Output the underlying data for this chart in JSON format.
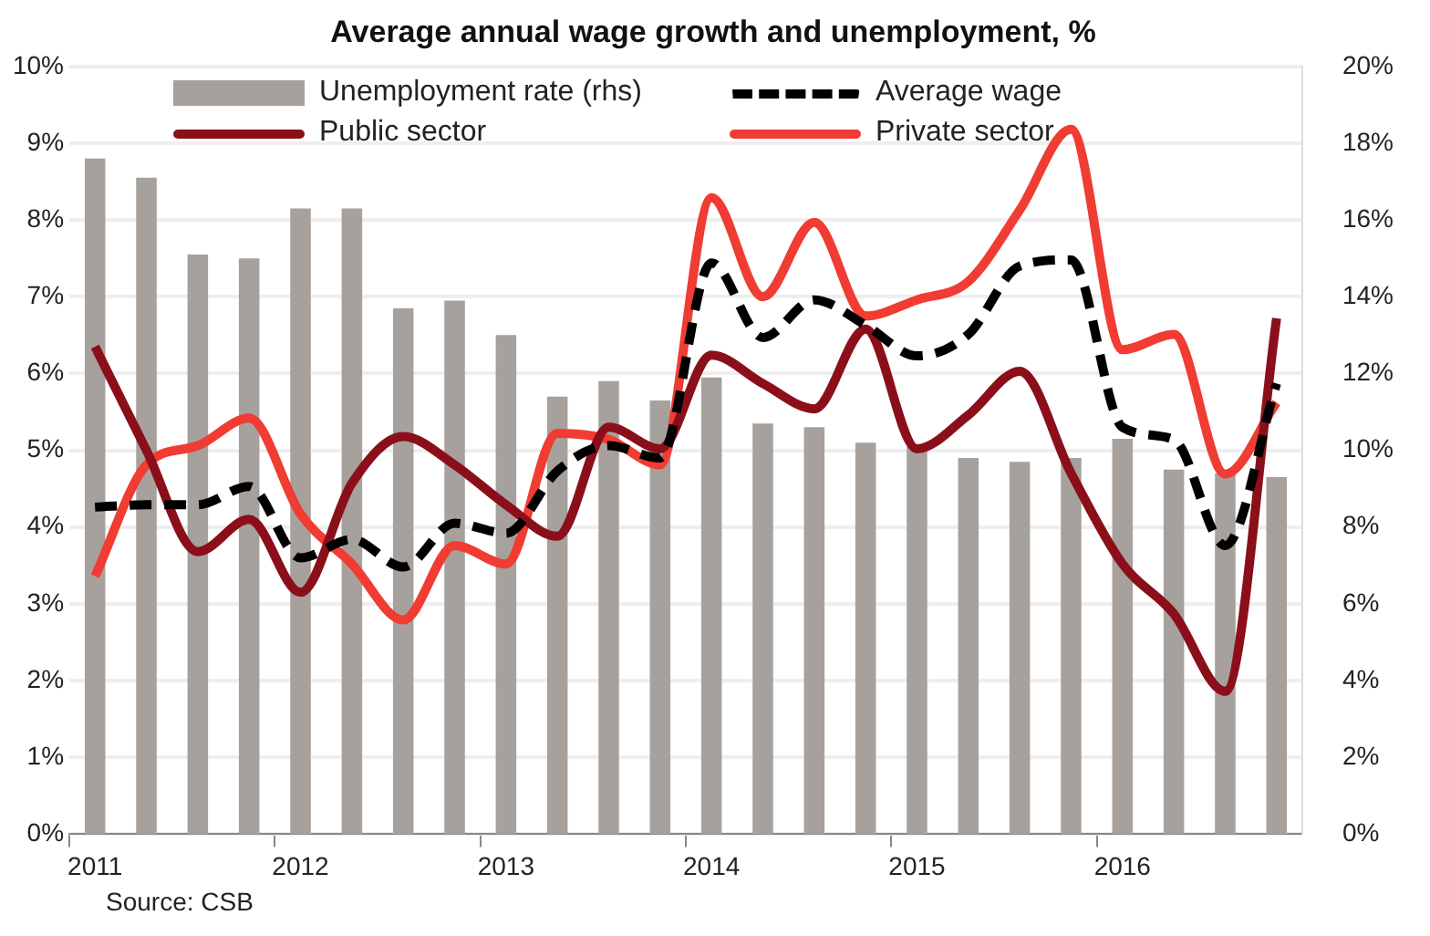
{
  "chart_data": {
    "type": "line",
    "title": "Average annual wage growth and unemployment, %",
    "categories": [
      "2011",
      null,
      null,
      null,
      "2012",
      null,
      null,
      null,
      "2013",
      null,
      null,
      null,
      "2014",
      null,
      null,
      null,
      "2015",
      null,
      null,
      null,
      "2016",
      null,
      null,
      null
    ],
    "series": [
      {
        "name": "Unemployment rate (rhs)",
        "type": "bar",
        "axis": "y2",
        "color": "#a6a19d",
        "values": [
          17.6,
          17.1,
          15.1,
          15.0,
          16.3,
          16.3,
          13.7,
          13.9,
          13.0,
          11.4,
          11.8,
          11.3,
          11.9,
          10.7,
          10.6,
          10.2,
          10.1,
          9.8,
          9.7,
          9.8,
          10.3,
          9.5,
          9.4,
          9.3
        ]
      },
      {
        "name": "Average wage",
        "color": "#000000",
        "line_style": "dashed",
        "values": [
          4.26,
          4.29,
          4.29,
          4.53,
          3.6,
          3.84,
          3.48,
          4.05,
          3.92,
          4.73,
          5.06,
          4.9,
          7.44,
          6.47,
          6.96,
          6.63,
          6.23,
          6.51,
          7.4,
          7.48,
          5.3,
          5.14,
          3.76,
          5.87
        ]
      },
      {
        "name": "Public sector",
        "color": "#8b0f1a",
        "line_style": "solid",
        "values": [
          6.35,
          5.0,
          3.68,
          4.1,
          3.15,
          4.57,
          5.18,
          4.81,
          4.29,
          3.88,
          5.3,
          5.02,
          6.24,
          5.87,
          5.54,
          6.58,
          5.02,
          5.46,
          6.03,
          4.7,
          3.52,
          2.87,
          1.86,
          6.72
        ]
      },
      {
        "name": "Private sector",
        "color": "#f03c32",
        "line_style": "solid",
        "values": [
          3.36,
          4.81,
          5.06,
          5.42,
          4.17,
          3.52,
          2.79,
          3.76,
          3.52,
          5.22,
          5.14,
          4.81,
          8.29,
          7.0,
          7.97,
          6.75,
          6.96,
          7.2,
          8.13,
          9.18,
          6.31,
          6.51,
          4.69,
          5.62
        ]
      }
    ],
    "ylim": [
      0,
      10
    ],
    "yticks": [
      {
        "value": 0,
        "label": "0%"
      },
      {
        "value": 1,
        "label": "1%"
      },
      {
        "value": 2,
        "label": "2%"
      },
      {
        "value": 3,
        "label": "3%"
      },
      {
        "value": 4,
        "label": "4%"
      },
      {
        "value": 5,
        "label": "5%"
      },
      {
        "value": 6,
        "label": "6%"
      },
      {
        "value": 7,
        "label": "7%"
      },
      {
        "value": 8,
        "label": "8%"
      },
      {
        "value": 9,
        "label": "9%"
      },
      {
        "value": 10,
        "label": "10%"
      }
    ],
    "y2lim": [
      0,
      20
    ],
    "y2ticks": [
      {
        "value": 0,
        "label": "0%"
      },
      {
        "value": 2,
        "label": "2%"
      },
      {
        "value": 4,
        "label": "4%"
      },
      {
        "value": 6,
        "label": "6%"
      },
      {
        "value": 8,
        "label": "8%"
      },
      {
        "value": 10,
        "label": "10%"
      },
      {
        "value": 12,
        "label": "12%"
      },
      {
        "value": 14,
        "label": "14%"
      },
      {
        "value": 16,
        "label": "16%"
      },
      {
        "value": 18,
        "label": "18%"
      },
      {
        "value": 20,
        "label": "20%"
      }
    ],
    "grid": "y",
    "legend": "top",
    "marker": "none",
    "annotations": [
      "Source: CSB"
    ]
  }
}
